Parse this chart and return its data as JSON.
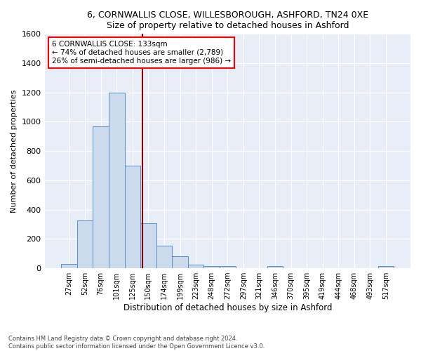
{
  "title_line1": "6, CORNWALLIS CLOSE, WILLESBOROUGH, ASHFORD, TN24 0XE",
  "title_line2": "Size of property relative to detached houses in Ashford",
  "xlabel": "Distribution of detached houses by size in Ashford",
  "ylabel": "Number of detached properties",
  "bar_labels": [
    "27sqm",
    "52sqm",
    "76sqm",
    "101sqm",
    "125sqm",
    "150sqm",
    "174sqm",
    "199sqm",
    "223sqm",
    "248sqm",
    "272sqm",
    "297sqm",
    "321sqm",
    "346sqm",
    "370sqm",
    "395sqm",
    "419sqm",
    "444sqm",
    "468sqm",
    "493sqm",
    "517sqm"
  ],
  "bar_values": [
    30,
    325,
    970,
    1200,
    700,
    305,
    155,
    80,
    25,
    15,
    15,
    0,
    0,
    15,
    0,
    0,
    0,
    0,
    0,
    0,
    15
  ],
  "bar_color": "#ccdaee",
  "bar_edgecolor": "#5b8fc9",
  "annotation_line1": "6 CORNWALLIS CLOSE: 133sqm",
  "annotation_line2": "← 74% of detached houses are smaller (2,789)",
  "annotation_line3": "26% of semi-detached houses are larger (986) →",
  "vline_x_index": 4.62,
  "vline_color": "#8b0000",
  "ylim": [
    0,
    1600
  ],
  "yticks": [
    0,
    200,
    400,
    600,
    800,
    1000,
    1200,
    1400,
    1600
  ],
  "footnote": "Contains HM Land Registry data © Crown copyright and database right 2024.\nContains public sector information licensed under the Open Government Licence v3.0.",
  "bg_color": "#ffffff",
  "plot_bg_color": "#e8eef8",
  "title_fontsize": 9,
  "ylabel_fontsize": 8,
  "xlabel_fontsize": 8.5
}
